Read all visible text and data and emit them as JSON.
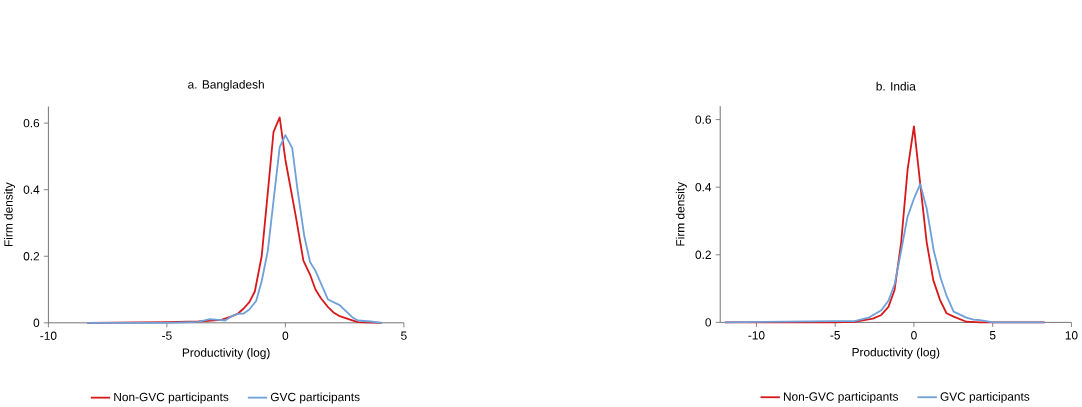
{
  "chart_data": [
    {
      "type": "line",
      "title": "a. Bangladesh",
      "xlabel": "Productivity (log)",
      "ylabel": "Firm density",
      "xlim": [
        -10,
        5
      ],
      "ylim": [
        0,
        0.65
      ],
      "xticks": [
        -10,
        -5,
        0,
        5
      ],
      "yticks": [
        0,
        0.2,
        0.4,
        0.6
      ],
      "grid": false,
      "legend": "bottom",
      "marker": "none",
      "line_style": "solid",
      "series": [
        {
          "name": "Non-GVC participants",
          "color": "#d7191c",
          "x": [
            -8.37,
            -5,
            -3.67,
            -2.7,
            -2.24,
            -2.0,
            -1.76,
            -1.52,
            -1.29,
            -1.0,
            -0.73,
            -0.5,
            -0.24,
            0,
            0.44,
            0.76,
            1.04,
            1.27,
            1.5,
            1.8,
            2.05,
            2.29,
            2.76,
            3.06,
            4.07
          ],
          "values": [
            0,
            0.002,
            0.004,
            0.009,
            0.02,
            0.028,
            0.043,
            0.062,
            0.094,
            0.2,
            0.4,
            0.574,
            0.617,
            0.49,
            0.32,
            0.187,
            0.145,
            0.1,
            0.074,
            0.047,
            0.03,
            0.02,
            0.009,
            0.002,
            0
          ]
        },
        {
          "name": "GVC participants",
          "color": "#6fa0d8",
          "x": [
            -8.37,
            -5,
            -3.67,
            -3.19,
            -2.83,
            -2.54,
            -2.24,
            -2.0,
            -1.76,
            -1.52,
            -1.23,
            -1.0,
            -0.74,
            -0.48,
            -0.24,
            0,
            0.29,
            0.52,
            0.8,
            1.04,
            1.27,
            1.8,
            2.29,
            2.82,
            3.06,
            3.6,
            4.07
          ],
          "values": [
            0,
            0,
            0.003,
            0.011,
            0.009,
            0.007,
            0.021,
            0.027,
            0.028,
            0.04,
            0.066,
            0.125,
            0.217,
            0.379,
            0.528,
            0.564,
            0.525,
            0.396,
            0.26,
            0.183,
            0.156,
            0.07,
            0.053,
            0.017,
            0.007,
            0.004,
            0
          ]
        }
      ]
    },
    {
      "type": "line",
      "title": "b. India",
      "xlabel": "Productivity (log)",
      "ylabel": "Firm density",
      "xlim": [
        -12.3,
        10
      ],
      "ylim": [
        0,
        0.64
      ],
      "xticks": [
        -10,
        -5,
        0,
        5,
        10
      ],
      "yticks": [
        0,
        0.2,
        0.4,
        0.6
      ],
      "grid": false,
      "legend": "bottom",
      "marker": "none",
      "line_style": "solid",
      "series": [
        {
          "name": "Non-GVC participants",
          "color": "#d7191c",
          "x": [
            -12.0,
            -5.1,
            -3.7,
            -2.61,
            -2.07,
            -1.62,
            -1.23,
            -0.81,
            -0.4,
            0,
            0.4,
            0.81,
            1.23,
            1.66,
            2.07,
            2.52,
            3.33,
            4.2,
            8.29
          ],
          "values": [
            0,
            0,
            0.002,
            0.011,
            0.022,
            0.046,
            0.096,
            0.237,
            0.453,
            0.58,
            0.41,
            0.237,
            0.125,
            0.066,
            0.027,
            0.017,
            0.002,
            0,
            0
          ]
        },
        {
          "name": "GVC participants",
          "color": "#6fa0d8",
          "x": [
            -12.0,
            -5.04,
            -3.78,
            -2.88,
            -2.07,
            -1.62,
            -1.23,
            -0.81,
            -0.41,
            0,
            0.4,
            0.81,
            1.26,
            1.71,
            2.07,
            2.52,
            3.33,
            3.78,
            4.2,
            5.04,
            8.29
          ],
          "values": [
            0,
            0.004,
            0.004,
            0.014,
            0.036,
            0.064,
            0.112,
            0.212,
            0.312,
            0.366,
            0.409,
            0.337,
            0.212,
            0.129,
            0.079,
            0.032,
            0.014,
            0.008,
            0.007,
            0,
            0
          ]
        }
      ]
    }
  ]
}
